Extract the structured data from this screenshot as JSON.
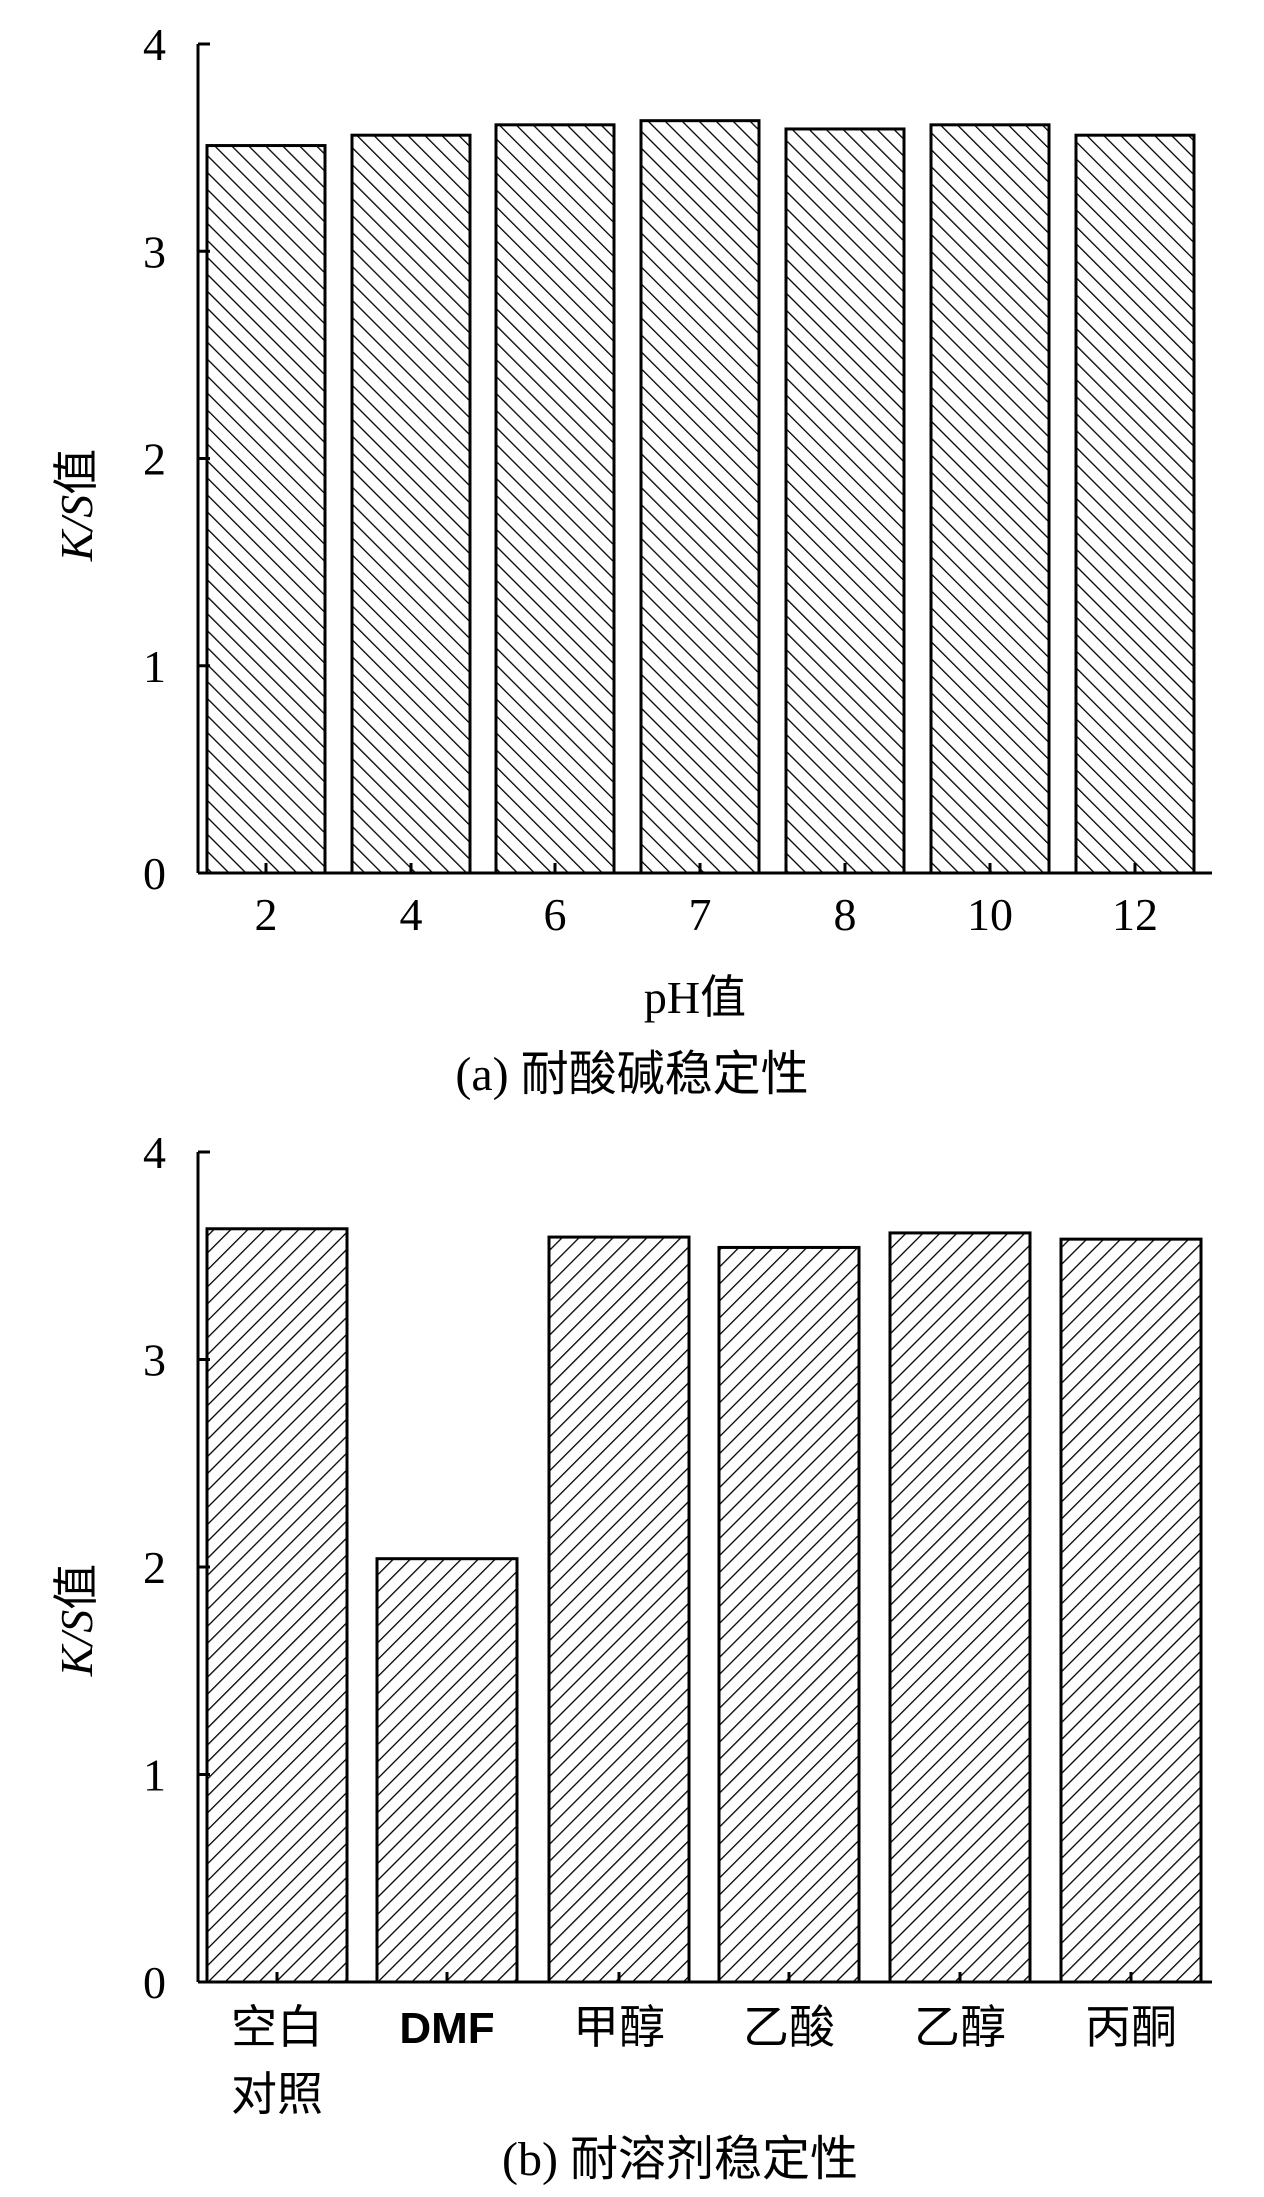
{
  "chart_data": [
    {
      "type": "bar",
      "categories": [
        "2",
        "4",
        "6",
        "7",
        "8",
        "10",
        "12"
      ],
      "values": [
        3.51,
        3.56,
        3.61,
        3.63,
        3.59,
        3.61,
        3.56
      ],
      "ylabel_italic": "K/S",
      "ylabel_suffix": "值",
      "xlabel": "pH值",
      "ylim": [
        0,
        4
      ],
      "yticks": [
        "0",
        "1",
        "2",
        "3",
        "4"
      ],
      "caption": "(a) 耐酸碱稳定性",
      "pattern": "backslash-hatch"
    },
    {
      "type": "bar",
      "categories": [
        {
          "line1": "空白",
          "line2": "对照"
        },
        {
          "line1": "DMF",
          "line2": ""
        },
        {
          "line1": "甲醇",
          "line2": ""
        },
        {
          "line1": "乙酸",
          "line2": ""
        },
        {
          "line1": "乙醇",
          "line2": ""
        },
        {
          "line1": "丙酮",
          "line2": ""
        }
      ],
      "values": [
        3.63,
        2.04,
        3.59,
        3.54,
        3.61,
        3.58
      ],
      "ylabel_italic": "K/S",
      "ylabel_suffix": "值",
      "xlabel": "",
      "ylim": [
        0,
        4
      ],
      "yticks": [
        "0",
        "1",
        "2",
        "3",
        "4"
      ],
      "caption": "(b) 耐溶剂稳定性",
      "pattern": "slash-hatch"
    }
  ]
}
